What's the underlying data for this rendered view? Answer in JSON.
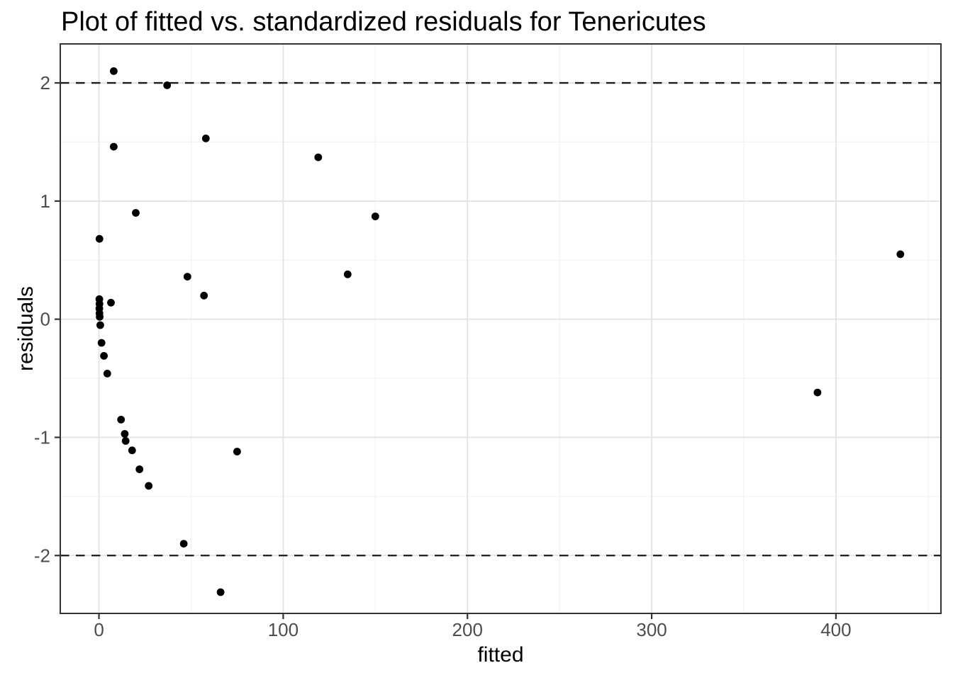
{
  "title": "Plot of fitted vs. standardized residuals for Tenericutes",
  "colors": {
    "background": "#ffffff",
    "point": "#000000",
    "grid_major": "#e3e3e3",
    "grid_minor": "#f0f0f0",
    "panel_border": "#333333",
    "tick_mark": "#333333",
    "tick_label": "#4d4d4d",
    "axis_title": "#000000",
    "reference_line": "#1a1a1a"
  },
  "chart_data": {
    "type": "scatter",
    "title": "Plot of fitted vs. standardized residuals for Tenericutes",
    "xlabel": "fitted",
    "ylabel": "residuals",
    "xlim": [
      -21,
      457
    ],
    "ylim": [
      -2.49,
      2.33
    ],
    "x_ticks": [
      0,
      100,
      200,
      300,
      400
    ],
    "y_ticks": [
      -2,
      -1,
      0,
      1,
      2
    ],
    "x_minor_ticks": [
      50,
      150,
      250,
      350,
      450
    ],
    "y_minor_ticks": [
      -1.5,
      -0.5,
      0.5,
      1.5
    ],
    "grid": true,
    "legend": false,
    "reference_lines": {
      "style": "dashed",
      "y_values": [
        2,
        -2
      ]
    },
    "points": [
      [
        8,
        2.1
      ],
      [
        37,
        1.98
      ],
      [
        58,
        1.53
      ],
      [
        8,
        1.46
      ],
      [
        119,
        1.37
      ],
      [
        20,
        0.9
      ],
      [
        150,
        0.87
      ],
      [
        0.3,
        0.68
      ],
      [
        435,
        0.55
      ],
      [
        135,
        0.38
      ],
      [
        48,
        0.36
      ],
      [
        57,
        0.2
      ],
      [
        0.2,
        0.17
      ],
      [
        6.5,
        0.14
      ],
      [
        0.3,
        0.13
      ],
      [
        0.2,
        0.09
      ],
      [
        0.3,
        0.05
      ],
      [
        0.4,
        0.02
      ],
      [
        0.7,
        -0.05
      ],
      [
        1.4,
        -0.2
      ],
      [
        2.7,
        -0.31
      ],
      [
        4.5,
        -0.46
      ],
      [
        390,
        -0.62
      ],
      [
        12,
        -0.85
      ],
      [
        14,
        -0.97
      ],
      [
        14.5,
        -1.03
      ],
      [
        18,
        -1.11
      ],
      [
        75,
        -1.12
      ],
      [
        22,
        -1.27
      ],
      [
        27,
        -1.41
      ],
      [
        46,
        -1.9
      ],
      [
        66,
        -2.31
      ]
    ]
  }
}
